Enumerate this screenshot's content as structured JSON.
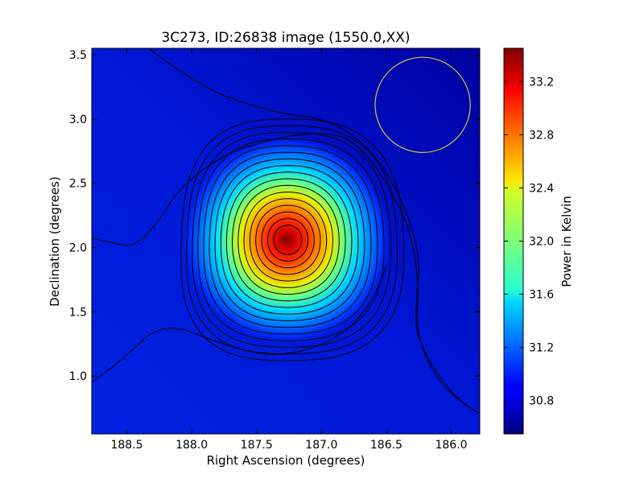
{
  "chart_data": {
    "type": "heatmap",
    "title": "3C273, ID:26838 image (1550.0,XX)",
    "xlabel": "Right Ascension (degrees)",
    "ylabel": "Declination (degrees)",
    "colorbar_label": "Power in Kelvin",
    "colormap": "jet",
    "x_reversed": true,
    "xlim": [
      188.77,
      185.78
    ],
    "ylim": [
      0.55,
      3.55
    ],
    "x_ticks": [
      "188.5",
      "188.0",
      "187.5",
      "187.0",
      "186.5",
      "186.0"
    ],
    "y_ticks": [
      "1.0",
      "1.5",
      "2.0",
      "2.5",
      "3.0",
      "3.5"
    ],
    "colorbar_range": [
      30.55,
      33.45
    ],
    "colorbar_ticks": [
      "30.8",
      "31.2",
      "31.6",
      "32.0",
      "32.4",
      "32.8",
      "33.2"
    ],
    "peak": {
      "ra": 187.26,
      "dec": 2.06,
      "value": 33.45
    },
    "background_level": 30.75,
    "contours": {
      "count": 17,
      "color": "#000000"
    },
    "beam_circle": {
      "ra": 186.22,
      "dec": 3.11,
      "radius_deg": 0.37,
      "color": "#cccc33"
    }
  }
}
